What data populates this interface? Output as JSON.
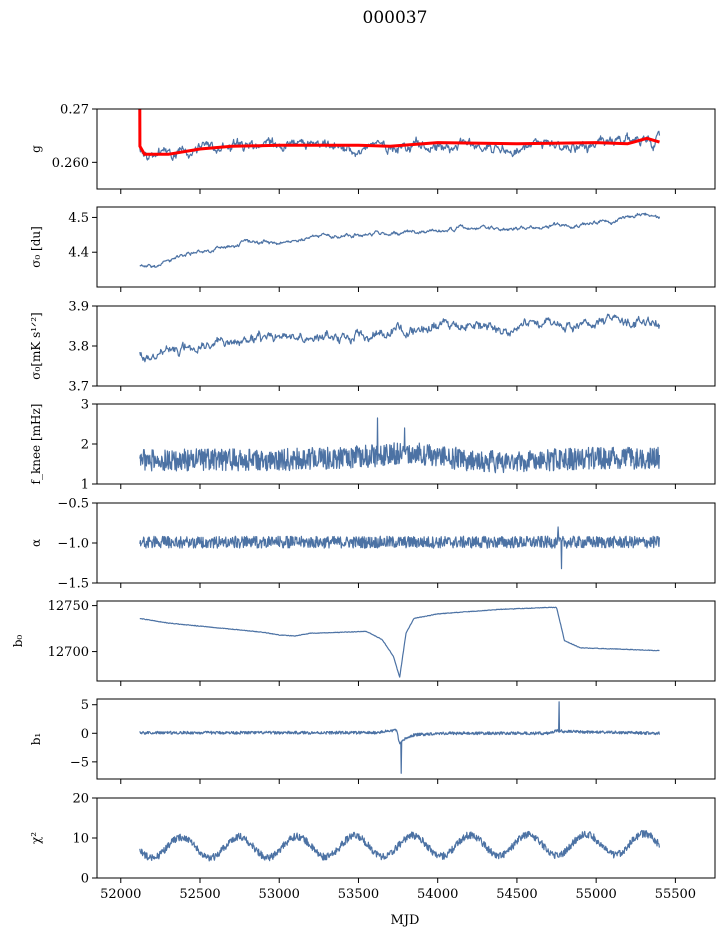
{
  "title": "000037",
  "chart_data": {
    "type": "line",
    "title": "000037",
    "xlabel": "MJD",
    "xlim": [
      51850,
      55750
    ],
    "xticks": [
      52000,
      52500,
      53000,
      53500,
      54000,
      54500,
      55000,
      55500
    ],
    "x_range": [
      52120,
      55400
    ],
    "colors": {
      "series": "#4c72a4",
      "fit": "#ff0000"
    },
    "panels": [
      {
        "ylabel": "g",
        "ylim": [
          0.255,
          0.27
        ],
        "yticks": [
          0.26,
          0.27
        ],
        "yticklabels": [
          "0.260",
          "0.27"
        ],
        "series": [
          {
            "pattern": "noise",
            "seed": 3,
            "points": [
              [
                52120,
                0.2625
              ],
              [
                52200,
                0.2608
              ],
              [
                52400,
                0.2622
              ],
              [
                52700,
                0.263
              ],
              [
                53000,
                0.2632
              ],
              [
                53400,
                0.2625
              ],
              [
                53700,
                0.2632
              ],
              [
                54000,
                0.2635
              ],
              [
                54400,
                0.263
              ],
              [
                54800,
                0.2632
              ],
              [
                55100,
                0.2632
              ],
              [
                55300,
                0.2645
              ],
              [
                55400,
                0.264
              ]
            ],
            "noise": 0.0011,
            "step": 4
          },
          {
            "pattern": "smooth",
            "color": "fit",
            "width": 3,
            "points": [
              [
                52120,
                0.27
              ],
              [
                52121,
                0.263
              ],
              [
                52150,
                0.2615
              ],
              [
                52300,
                0.2615
              ],
              [
                52500,
                0.2625
              ],
              [
                52700,
                0.263
              ],
              [
                53000,
                0.2632
              ],
              [
                53500,
                0.2632
              ],
              [
                53700,
                0.263
              ],
              [
                54000,
                0.2637
              ],
              [
                54500,
                0.2635
              ],
              [
                55000,
                0.2637
              ],
              [
                55200,
                0.2635
              ],
              [
                55320,
                0.2645
              ],
              [
                55400,
                0.2638
              ]
            ]
          }
        ]
      },
      {
        "ylabel": "σ₀ [du]",
        "ylim": [
          4.3,
          4.53
        ],
        "yticks": [
          4.4,
          4.5
        ],
        "yticklabels": [
          "4.4",
          "4.5"
        ],
        "series": [
          {
            "pattern": "noise",
            "seed": 7,
            "points": [
              [
                52120,
                4.363
              ],
              [
                52200,
                4.355
              ],
              [
                52400,
                4.39
              ],
              [
                52600,
                4.41
              ],
              [
                52800,
                4.43
              ],
              [
                53000,
                4.43
              ],
              [
                53200,
                4.445
              ],
              [
                53450,
                4.45
              ],
              [
                53700,
                4.455
              ],
              [
                53900,
                4.46
              ],
              [
                54200,
                4.47
              ],
              [
                54500,
                4.465
              ],
              [
                54800,
                4.48
              ],
              [
                55100,
                4.49
              ],
              [
                55300,
                4.515
              ],
              [
                55400,
                4.505
              ]
            ],
            "noise": 0.006,
            "step": 4
          }
        ]
      },
      {
        "ylabel": "σ₀[mK s¹ᐟ²]",
        "ylim": [
          3.7,
          3.9
        ],
        "yticks": [
          3.7,
          3.8,
          3.9
        ],
        "yticklabels": [
          "3.7",
          "3.8",
          "3.9"
        ],
        "series": [
          {
            "pattern": "noise",
            "seed": 11,
            "points": [
              [
                52120,
                3.775
              ],
              [
                52300,
                3.79
              ],
              [
                52600,
                3.81
              ],
              [
                53000,
                3.82
              ],
              [
                53400,
                3.825
              ],
              [
                53700,
                3.84
              ],
              [
                54000,
                3.845
              ],
              [
                54400,
                3.85
              ],
              [
                54800,
                3.855
              ],
              [
                55100,
                3.86
              ],
              [
                55400,
                3.86
              ]
            ],
            "noise": 0.014,
            "step": 4
          }
        ]
      },
      {
        "ylabel": "f_knee [mHz]",
        "ylim": [
          1,
          3
        ],
        "yticks": [
          1,
          2,
          3
        ],
        "yticklabels": [
          "1",
          "2",
          "3"
        ],
        "series": [
          {
            "pattern": "noise",
            "seed": 19,
            "points": [
              [
                52120,
                1.6
              ],
              [
                53000,
                1.6
              ],
              [
                53600,
                1.7
              ],
              [
                53800,
                1.8
              ],
              [
                54300,
                1.55
              ],
              [
                55000,
                1.65
              ],
              [
                55400,
                1.65
              ]
            ],
            "noise": 0.28,
            "step": 3,
            "spikes": [
              [
                53620,
                2.65
              ],
              [
                53790,
                2.4
              ]
            ]
          }
        ]
      },
      {
        "ylabel": "α",
        "ylim": [
          -1.5,
          -0.5
        ],
        "yticks": [
          -1.5,
          -1.0,
          -0.5
        ],
        "yticklabels": [
          "−1.5",
          "−1.0",
          "−0.5"
        ],
        "series": [
          {
            "pattern": "noise",
            "seed": 23,
            "points": [
              [
                52120,
                -0.99
              ],
              [
                55400,
                -0.99
              ]
            ],
            "noise": 0.075,
            "step": 3,
            "spikes": [
              [
                54780,
                -1.32
              ],
              [
                54760,
                -0.8
              ]
            ]
          }
        ]
      },
      {
        "ylabel": "b₀",
        "ylim": [
          12668,
          12755
        ],
        "yticks": [
          12700,
          12750
        ],
        "yticklabels": [
          "12700",
          "12750"
        ],
        "series": [
          {
            "pattern": "smooth",
            "seed": 29,
            "points": [
              [
                52120,
                12736
              ],
              [
                52300,
                12731
              ],
              [
                52600,
                12726
              ],
              [
                52900,
                12721
              ],
              [
                53000,
                12718
              ],
              [
                53100,
                12717
              ],
              [
                53200,
                12720
              ],
              [
                53400,
                12721
              ],
              [
                53550,
                12722
              ],
              [
                53650,
                12713
              ],
              [
                53720,
                12695
              ],
              [
                53760,
                12672
              ],
              [
                53800,
                12720
              ],
              [
                53850,
                12736
              ],
              [
                54000,
                12741
              ],
              [
                54400,
                12746
              ],
              [
                54700,
                12748
              ],
              [
                54750,
                12748
              ],
              [
                54800,
                12712
              ],
              [
                54900,
                12704
              ],
              [
                55100,
                12703
              ],
              [
                55400,
                12701
              ]
            ],
            "noise": 0.3,
            "step": 4
          }
        ]
      },
      {
        "ylabel": "b₁",
        "ylim": [
          -8,
          6
        ],
        "yticks": [
          -5,
          0,
          5
        ],
        "yticklabels": [
          "−5",
          "0",
          "5"
        ],
        "series": [
          {
            "pattern": "noise",
            "seed": 31,
            "points": [
              [
                52120,
                0.1
              ],
              [
                53600,
                0.1
              ],
              [
                53700,
                0.4
              ],
              [
                53740,
                0.6
              ],
              [
                53760,
                -2.0
              ],
              [
                53790,
                -1.0
              ],
              [
                53850,
                -0.3
              ],
              [
                54000,
                0
              ],
              [
                54700,
                0
              ],
              [
                54760,
                0.5
              ],
              [
                54800,
                0.3
              ],
              [
                55400,
                0
              ]
            ],
            "noise": 0.25,
            "step": 3,
            "spikes": [
              [
                53770,
                -7.0
              ],
              [
                54765,
                5.5
              ]
            ]
          }
        ]
      },
      {
        "ylabel": "χ²",
        "ylim": [
          0,
          20
        ],
        "yticks": [
          0,
          10,
          20
        ],
        "yticklabels": [
          "0",
          "10",
          "20"
        ],
        "series": [
          {
            "pattern": "seasonal",
            "seed": 37,
            "points": [
              [
                52120,
                7.5
              ],
              [
                55400,
                8.5
              ]
            ],
            "amplitude": 2.6,
            "period": 365,
            "phase": 52290,
            "noise": 0.9,
            "step": 3
          }
        ]
      }
    ]
  }
}
